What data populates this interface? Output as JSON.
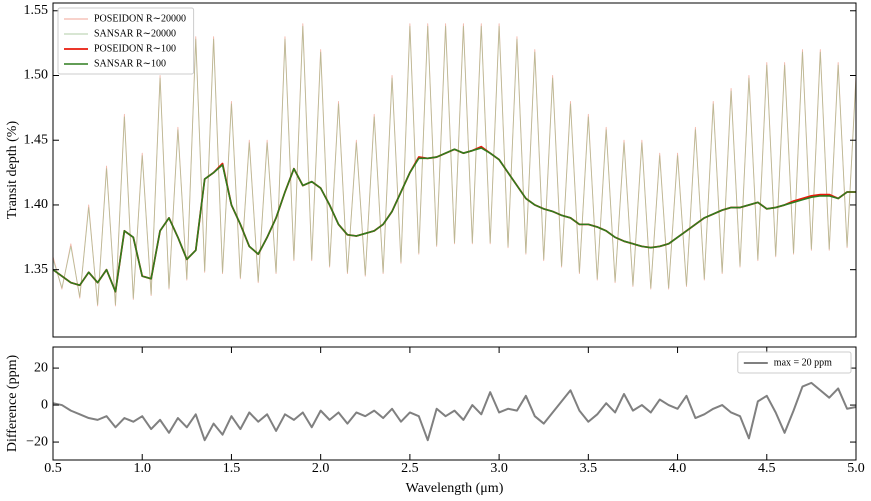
{
  "chart_data": [
    {
      "type": "line",
      "ylabel": "Transit depth (%)",
      "legend": "upper left",
      "xlim": [
        0.5,
        5.0
      ],
      "ylim": [
        1.298,
        1.556
      ],
      "yticks": [
        1.35,
        {
          "value": 1.4,
          "label": "1.40"
        },
        1.45,
        {
          "value": 1.5,
          "label": "1.50"
        },
        1.55
      ],
      "x": [
        0.5,
        0.55,
        0.6,
        0.65,
        0.7,
        0.75,
        0.8,
        0.85,
        0.9,
        0.95,
        1.0,
        1.05,
        1.1,
        1.15,
        1.2,
        1.25,
        1.3,
        1.35,
        1.4,
        1.45,
        1.5,
        1.55,
        1.6,
        1.65,
        1.7,
        1.75,
        1.8,
        1.85,
        1.9,
        1.95,
        2.0,
        2.05,
        2.1,
        2.15,
        2.2,
        2.25,
        2.3,
        2.35,
        2.4,
        2.45,
        2.5,
        2.55,
        2.6,
        2.65,
        2.7,
        2.75,
        2.8,
        2.85,
        2.9,
        2.95,
        3.0,
        3.05,
        3.1,
        3.15,
        3.2,
        3.25,
        3.3,
        3.35,
        3.4,
        3.45,
        3.5,
        3.55,
        3.6,
        3.65,
        3.7,
        3.75,
        3.8,
        3.85,
        3.9,
        3.95,
        4.0,
        4.05,
        4.1,
        4.15,
        4.2,
        4.25,
        4.3,
        4.35,
        4.4,
        4.45,
        4.5,
        4.55,
        4.6,
        4.65,
        4.7,
        4.75,
        4.8,
        4.85,
        4.9,
        4.95,
        5.0
      ],
      "series": [
        {
          "name": "POSEIDON R∼20000",
          "color": "#f0a090",
          "values": [
            1.36,
            1.335,
            1.37,
            1.328,
            1.4,
            1.322,
            1.43,
            1.322,
            1.47,
            1.327,
            1.44,
            1.33,
            1.5,
            1.335,
            1.46,
            1.342,
            1.53,
            1.348,
            1.53,
            1.347,
            1.48,
            1.343,
            1.45,
            1.34,
            1.45,
            1.347,
            1.53,
            1.357,
            1.54,
            1.357,
            1.52,
            1.352,
            1.48,
            1.347,
            1.45,
            1.345,
            1.47,
            1.347,
            1.5,
            1.355,
            1.54,
            1.362,
            1.54,
            1.368,
            1.54,
            1.37,
            1.54,
            1.37,
            1.54,
            1.37,
            1.54,
            1.367,
            1.53,
            1.362,
            1.52,
            1.357,
            1.5,
            1.352,
            1.48,
            1.347,
            1.47,
            1.342,
            1.46,
            1.34,
            1.45,
            1.337,
            1.45,
            1.335,
            1.44,
            1.335,
            1.44,
            1.337,
            1.46,
            1.342,
            1.48,
            1.347,
            1.49,
            1.352,
            1.5,
            1.357,
            1.51,
            1.36,
            1.51,
            1.362,
            1.52,
            1.365,
            1.52,
            1.365,
            1.51,
            1.367,
            1.5
          ]
        },
        {
          "name": "SANSAR R∼20000",
          "color": "#8cb880",
          "values": [
            1.358,
            1.336,
            1.368,
            1.329,
            1.398,
            1.323,
            1.428,
            1.323,
            1.468,
            1.328,
            1.438,
            1.331,
            1.498,
            1.336,
            1.458,
            1.343,
            1.528,
            1.349,
            1.528,
            1.348,
            1.478,
            1.344,
            1.448,
            1.341,
            1.448,
            1.348,
            1.528,
            1.358,
            1.538,
            1.358,
            1.518,
            1.353,
            1.478,
            1.348,
            1.448,
            1.346,
            1.468,
            1.348,
            1.498,
            1.356,
            1.538,
            1.363,
            1.538,
            1.369,
            1.538,
            1.371,
            1.538,
            1.371,
            1.538,
            1.371,
            1.538,
            1.368,
            1.528,
            1.363,
            1.518,
            1.358,
            1.498,
            1.353,
            1.478,
            1.348,
            1.468,
            1.343,
            1.458,
            1.341,
            1.448,
            1.338,
            1.448,
            1.336,
            1.438,
            1.336,
            1.438,
            1.338,
            1.458,
            1.343,
            1.478,
            1.348,
            1.488,
            1.353,
            1.498,
            1.358,
            1.508,
            1.361,
            1.508,
            1.363,
            1.518,
            1.366,
            1.518,
            1.366,
            1.508,
            1.368,
            1.498
          ]
        },
        {
          "name": "POSEIDON R∼100",
          "color": "#e8190c",
          "values": [
            1.35,
            1.345,
            1.34,
            1.338,
            1.348,
            1.34,
            1.35,
            1.333,
            1.38,
            1.375,
            1.345,
            1.343,
            1.38,
            1.39,
            1.375,
            1.358,
            1.365,
            1.42,
            1.425,
            1.432,
            1.4,
            1.385,
            1.368,
            1.362,
            1.375,
            1.39,
            1.41,
            1.428,
            1.415,
            1.418,
            1.413,
            1.4,
            1.385,
            1.377,
            1.376,
            1.378,
            1.38,
            1.385,
            1.395,
            1.41,
            1.425,
            1.437,
            1.436,
            1.437,
            1.44,
            1.443,
            1.44,
            1.442,
            1.445,
            1.44,
            1.435,
            1.425,
            1.415,
            1.405,
            1.4,
            1.397,
            1.395,
            1.392,
            1.39,
            1.385,
            1.385,
            1.383,
            1.38,
            1.375,
            1.372,
            1.37,
            1.368,
            1.367,
            1.368,
            1.37,
            1.375,
            1.38,
            1.385,
            1.39,
            1.393,
            1.396,
            1.398,
            1.398,
            1.4,
            1.402,
            1.397,
            1.398,
            1.4,
            1.403,
            1.405,
            1.407,
            1.408,
            1.408,
            1.405,
            1.41,
            1.41
          ]
        },
        {
          "name": "SANSAR R∼100",
          "color": "#2e7d1e",
          "values": [
            1.35,
            1.345,
            1.34,
            1.338,
            1.348,
            1.34,
            1.35,
            1.333,
            1.38,
            1.375,
            1.345,
            1.343,
            1.38,
            1.39,
            1.375,
            1.358,
            1.365,
            1.42,
            1.425,
            1.431,
            1.4,
            1.385,
            1.368,
            1.362,
            1.375,
            1.39,
            1.41,
            1.428,
            1.415,
            1.418,
            1.413,
            1.4,
            1.385,
            1.377,
            1.376,
            1.378,
            1.38,
            1.385,
            1.395,
            1.41,
            1.425,
            1.436,
            1.436,
            1.437,
            1.44,
            1.443,
            1.44,
            1.442,
            1.444,
            1.44,
            1.435,
            1.425,
            1.415,
            1.405,
            1.4,
            1.397,
            1.395,
            1.392,
            1.39,
            1.385,
            1.385,
            1.383,
            1.38,
            1.375,
            1.372,
            1.37,
            1.368,
            1.367,
            1.368,
            1.37,
            1.375,
            1.38,
            1.385,
            1.39,
            1.393,
            1.396,
            1.398,
            1.398,
            1.4,
            1.402,
            1.397,
            1.398,
            1.4,
            1.402,
            1.404,
            1.406,
            1.407,
            1.407,
            1.405,
            1.41,
            1.41
          ]
        }
      ]
    },
    {
      "type": "line",
      "ylabel": "Difference (ppm)",
      "xlabel": "Wavelength (μm)",
      "legend": "upper right",
      "xlim": [
        0.5,
        5.0
      ],
      "ylim": [
        -29.7,
        31.4
      ],
      "xticks": [
        0.5,
        {
          "value": 1,
          "label": "1.0"
        },
        1.5,
        {
          "value": 2,
          "label": "2.0"
        },
        2.5,
        {
          "value": 3,
          "label": "3.0"
        },
        3.5,
        {
          "value": 4,
          "label": "4.0"
        },
        4.5,
        {
          "value": 5,
          "label": "5.0"
        }
      ],
      "yticks": [
        {
          "value": -20,
          "label": "−20"
        },
        0,
        20
      ],
      "x": [
        0.5,
        0.55,
        0.6,
        0.65,
        0.7,
        0.75,
        0.8,
        0.85,
        0.9,
        0.95,
        1.0,
        1.05,
        1.1,
        1.15,
        1.2,
        1.25,
        1.3,
        1.35,
        1.4,
        1.45,
        1.5,
        1.55,
        1.6,
        1.65,
        1.7,
        1.75,
        1.8,
        1.85,
        1.9,
        1.95,
        2.0,
        2.05,
        2.1,
        2.15,
        2.2,
        2.25,
        2.3,
        2.35,
        2.4,
        2.45,
        2.5,
        2.55,
        2.6,
        2.65,
        2.7,
        2.75,
        2.8,
        2.85,
        2.9,
        2.95,
        3.0,
        3.05,
        3.1,
        3.15,
        3.2,
        3.25,
        3.3,
        3.35,
        3.4,
        3.45,
        3.5,
        3.55,
        3.6,
        3.65,
        3.7,
        3.75,
        3.8,
        3.85,
        3.9,
        3.95,
        4.0,
        4.05,
        4.1,
        4.15,
        4.2,
        4.25,
        4.3,
        4.35,
        4.4,
        4.45,
        4.5,
        4.55,
        4.6,
        4.65,
        4.7,
        4.75,
        4.8,
        4.85,
        4.9,
        4.95,
        5.0
      ],
      "series": [
        {
          "name": "max = 20 ppm",
          "color": "#808080",
          "values": [
            1,
            0,
            -3,
            -5,
            -7,
            -8,
            -6,
            -12,
            -7,
            -9,
            -6,
            -13,
            -8,
            -15,
            -7,
            -12,
            -5,
            -19,
            -10,
            -16,
            -6,
            -13,
            -4,
            -9,
            -5,
            -14,
            -5,
            -8,
            -4,
            -12,
            -3,
            -8,
            -4,
            -10,
            -4,
            -6,
            -3,
            -7,
            -2,
            -9,
            -4,
            -6,
            -19,
            -2,
            -6,
            -3,
            -8,
            0,
            -5,
            7,
            -4,
            -2,
            -3,
            5,
            -6,
            -10,
            -4,
            2,
            8,
            -3,
            -9,
            -5,
            1,
            -4,
            6,
            -3,
            0,
            -4,
            3,
            0,
            -2,
            5,
            -7,
            -5,
            -2,
            0,
            -4,
            -6,
            -18,
            2,
            5,
            -4,
            -15,
            -3,
            10,
            12,
            8,
            4,
            9,
            -2,
            -1
          ]
        }
      ]
    }
  ]
}
